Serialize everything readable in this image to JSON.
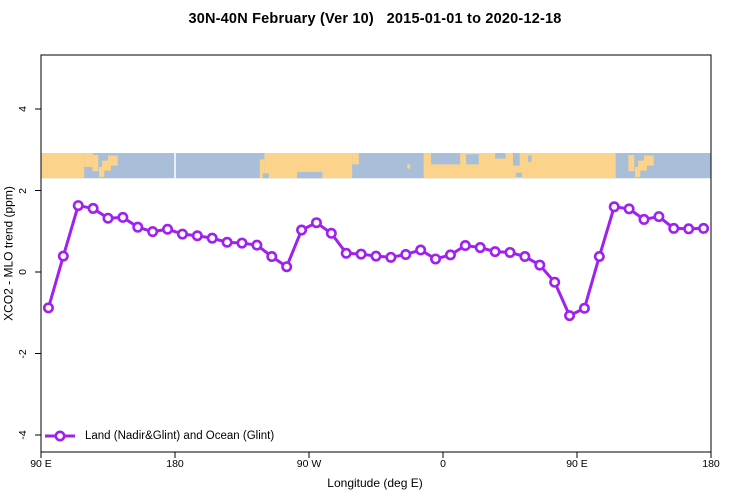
{
  "page": {
    "title": "30N-40N February (Ver 10)   2015-01-01 to 2020-12-18"
  },
  "chart_data": {
    "type": "line",
    "title": "30N-40N February (Ver 10)   2015-01-01 to 2020-12-18",
    "xlabel": "Longitude (deg E)",
    "ylabel": "XCO2 - MLO trend (ppm)",
    "xlim": [
      90,
      540
    ],
    "ylim": [
      -4.4,
      5.35
    ],
    "grid": false,
    "x_ticks": [
      {
        "lon": 90,
        "label": "90 E"
      },
      {
        "lon": 180,
        "label": "180"
      },
      {
        "lon": 270,
        "label": "90 W"
      },
      {
        "lon": 360,
        "label": "0"
      },
      {
        "lon": 450,
        "label": "90 E"
      },
      {
        "lon": 540,
        "label": "180"
      }
    ],
    "y_ticks": [
      {
        "value": 4,
        "label": "4"
      },
      {
        "value": 2,
        "label": "2"
      },
      {
        "value": 0,
        "label": "0"
      },
      {
        "value": -2,
        "label": "-2"
      },
      {
        "value": -4,
        "label": "-4"
      }
    ],
    "legend": {
      "label": "Land (Nadir&Glint) and Ocean (Glint)",
      "position": "bottom-left"
    },
    "series": [
      {
        "name": "Land (Nadir&Glint) and Ocean (Glint)",
        "color": "#a020f0",
        "marker": "open-circle",
        "line_width": 3,
        "x": [
          95,
          105,
          115,
          125,
          135,
          145,
          155,
          165,
          175,
          185,
          195,
          205,
          215,
          225,
          235,
          245,
          255,
          265,
          275,
          285,
          295,
          305,
          315,
          325,
          335,
          345,
          355,
          365,
          375,
          385,
          395,
          405,
          415,
          425,
          435,
          445,
          455,
          465,
          475,
          485,
          495,
          505,
          515,
          525,
          535
        ],
        "y": [
          -0.88,
          0.39,
          1.63,
          1.56,
          1.32,
          1.34,
          1.1,
          0.99,
          1.05,
          0.93,
          0.89,
          0.83,
          0.73,
          0.71,
          0.66,
          0.38,
          0.13,
          1.03,
          1.21,
          0.95,
          0.46,
          0.44,
          0.39,
          0.36,
          0.43,
          0.54,
          0.32,
          0.42,
          0.65,
          0.6,
          0.5,
          0.48,
          0.38,
          0.17,
          -0.25,
          -1.07,
          -0.89,
          0.38,
          1.6,
          1.55,
          1.29,
          1.36,
          1.07,
          1.06,
          1.07
        ]
      }
    ],
    "map_strip": {
      "description": "world-map latitude band 30N-40N drawn across plot",
      "value_top": 2.92,
      "value_bottom": 2.3,
      "ocean_color": "#a9bfd9",
      "land_color": "#fbd38a",
      "seam_lon": 180,
      "land_segments": [
        {
          "name": "asia-main",
          "x0": 90,
          "x1": 119,
          "t": 0,
          "b": 1
        },
        {
          "name": "china-coast",
          "x0": 119,
          "x1": 125,
          "t": 0,
          "b": 0.55
        },
        {
          "name": "korea",
          "x0": 124.5,
          "x1": 128.5,
          "t": 0.08,
          "b": 0.72
        },
        {
          "name": "kyushu",
          "x0": 129,
          "x1": 132.5,
          "t": 0.55,
          "b": 0.95
        },
        {
          "name": "honshu-west",
          "x0": 131,
          "x1": 137,
          "t": 0.3,
          "b": 0.7
        },
        {
          "name": "honshu-east",
          "x0": 135,
          "x1": 141.5,
          "t": 0.1,
          "b": 0.5
        },
        {
          "name": "namerica-west-coast",
          "x0": 237,
          "x1": 240,
          "t": 0.25,
          "b": 1
        },
        {
          "name": "namerica-main",
          "x0": 240,
          "x1": 299,
          "t": 0,
          "b": 1
        },
        {
          "name": "namerica-east-coast",
          "x0": 299,
          "x1": 303.5,
          "t": 0,
          "b": 0.45
        },
        {
          "name": "azores-madeira",
          "x0": 336,
          "x1": 338,
          "t": 0.45,
          "b": 0.62
        },
        {
          "name": "africa-eurasia-main",
          "x0": 347,
          "x1": 476,
          "t": 0,
          "b": 1
        },
        {
          "name": "iberia",
          "x0": 351,
          "x1": 357.5,
          "t": 0,
          "b": 0.55
        },
        {
          "name": "italy",
          "x0": 371.5,
          "x1": 375.5,
          "t": 0.05,
          "b": 0.6
        },
        {
          "name": "anatolia",
          "x0": 384,
          "x1": 403,
          "t": 0,
          "b": 0.48
        },
        {
          "name": "korea-2",
          "x0": 484.5,
          "x1": 488.5,
          "t": 0.08,
          "b": 0.72
        },
        {
          "name": "kyushu-2",
          "x0": 489,
          "x1": 492.5,
          "t": 0.55,
          "b": 0.95
        },
        {
          "name": "honshu-west-2",
          "x0": 491,
          "x1": 497,
          "t": 0.3,
          "b": 0.7
        },
        {
          "name": "honshu-east-2",
          "x0": 495,
          "x1": 501.5,
          "t": 0.1,
          "b": 0.5
        }
      ],
      "water_insets": [
        {
          "name": "gulf-of-california",
          "x0": 239,
          "x1": 243,
          "t": 0.8,
          "b": 1
        },
        {
          "name": "gulf-of-mexico",
          "x0": 262,
          "x1": 279,
          "t": 0.75,
          "b": 1
        },
        {
          "name": "west-mediterranean",
          "x0": 352,
          "x1": 371.5,
          "t": 0,
          "b": 0.45
        },
        {
          "name": "east-mediterranean",
          "x0": 375.5,
          "x1": 384,
          "t": 0.05,
          "b": 0.45
        },
        {
          "name": "black-sea",
          "x0": 395,
          "x1": 402,
          "t": 0,
          "b": 0.22
        },
        {
          "name": "caspian-sea",
          "x0": 407,
          "x1": 411.5,
          "t": 0,
          "b": 0.5
        },
        {
          "name": "aral-sea",
          "x0": 417,
          "x1": 419.5,
          "t": 0.1,
          "b": 0.35
        },
        {
          "name": "persian-gulf",
          "x0": 409,
          "x1": 413,
          "t": 0.78,
          "b": 0.95
        }
      ]
    },
    "axis_color": "#000000",
    "background_color": "#ffffff"
  }
}
